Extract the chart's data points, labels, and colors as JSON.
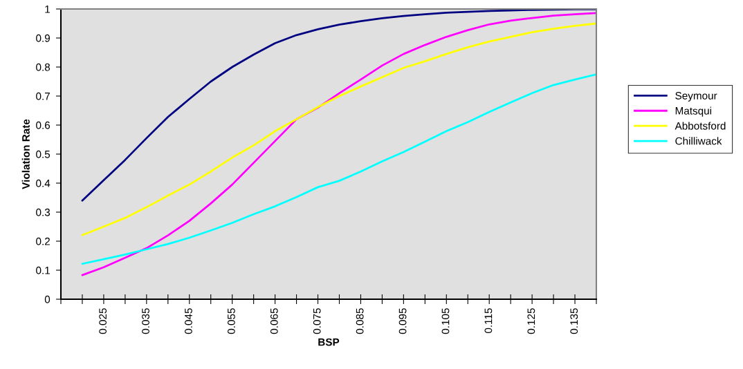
{
  "chart_data": {
    "type": "line",
    "xlabel": "BSP",
    "ylabel": "Violation Rate",
    "categories": [
      null,
      "0.025",
      null,
      "0.035",
      null,
      "0.045",
      null,
      "0.055",
      null,
      "0.065",
      null,
      "0.075",
      null,
      "0.085",
      null,
      "0.095",
      null,
      "0.105",
      null,
      "0.115",
      null,
      "0.125",
      null,
      "0.135",
      null
    ],
    "series": [
      {
        "name": "Seymour",
        "color": "#000080",
        "values": [
          0.34,
          0.41,
          0.48,
          0.555,
          0.628,
          0.69,
          0.75,
          0.8,
          0.843,
          0.882,
          0.91,
          0.93,
          0.946,
          0.958,
          0.968,
          0.976,
          0.982,
          0.987,
          0.99,
          0.993,
          0.995,
          0.997,
          0.998,
          0.999,
          0.999
        ]
      },
      {
        "name": "Matsqui",
        "color": "#ff00ff",
        "values": [
          0.083,
          0.11,
          0.143,
          0.176,
          0.22,
          0.27,
          0.33,
          0.395,
          0.47,
          0.545,
          0.62,
          0.66,
          0.71,
          0.757,
          0.805,
          0.845,
          0.876,
          0.904,
          0.927,
          0.947,
          0.96,
          0.969,
          0.977,
          0.982,
          0.986
        ]
      },
      {
        "name": "Abbotsford",
        "color": "#ffff00",
        "values": [
          0.221,
          0.25,
          0.28,
          0.317,
          0.357,
          0.395,
          0.44,
          0.488,
          0.53,
          0.579,
          0.62,
          0.662,
          0.7,
          0.733,
          0.765,
          0.797,
          0.82,
          0.845,
          0.868,
          0.888,
          0.904,
          0.92,
          0.932,
          0.942,
          0.95
        ]
      },
      {
        "name": "Chilliwack",
        "color": "#00ffff",
        "values": [
          0.122,
          0.138,
          0.154,
          0.172,
          0.19,
          0.212,
          0.237,
          0.263,
          0.293,
          0.32,
          0.352,
          0.386,
          0.408,
          0.44,
          0.475,
          0.507,
          0.543,
          0.579,
          0.61,
          0.645,
          0.678,
          0.71,
          0.738,
          0.757,
          0.775
        ]
      }
    ],
    "ylim": [
      0,
      1
    ],
    "yticks": [
      0,
      0.1,
      0.2,
      0.3,
      0.4,
      0.5,
      0.6,
      0.7,
      0.8,
      0.9,
      1
    ],
    "grid": false,
    "legend": "right",
    "marker": "none",
    "line_style": "solid"
  }
}
